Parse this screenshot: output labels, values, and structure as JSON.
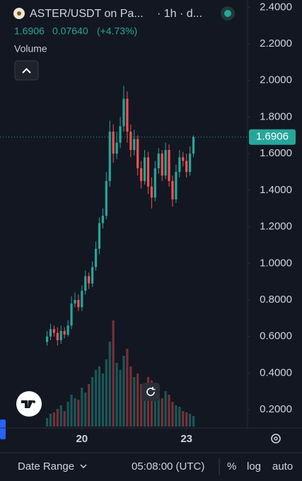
{
  "chart_data": {
    "type": "candlestick",
    "title": "ASTER/USDT on Pa...",
    "interval": "· 1h · d...",
    "change": "0.07640",
    "change_pct": "(+4.73%)",
    "volume_label": "Volume",
    "up_color": "#26a69a",
    "down_color": "#ef5350",
    "x": [
      19.0,
      19.1,
      19.2,
      19.3,
      19.4,
      19.5,
      19.6,
      19.7,
      19.8,
      19.9,
      20.0,
      20.1,
      20.2,
      20.3,
      20.4,
      20.5,
      20.6,
      20.7,
      20.8,
      20.9,
      21.0,
      21.1,
      21.2,
      21.3,
      21.4,
      21.5,
      21.6,
      21.7,
      21.8,
      21.9,
      22.0,
      22.1,
      22.2,
      22.3,
      22.4,
      22.5,
      22.6,
      22.7,
      22.8,
      22.9,
      23.0,
      23.1,
      23.2
    ],
    "open": [
      0.57,
      0.6,
      0.64,
      0.62,
      0.58,
      0.63,
      0.61,
      0.66,
      0.78,
      0.8,
      0.76,
      0.85,
      0.93,
      0.89,
      0.98,
      1.08,
      1.22,
      1.26,
      1.45,
      1.72,
      1.6,
      1.66,
      1.75,
      1.9,
      1.72,
      1.62,
      1.68,
      1.52,
      1.45,
      1.58,
      1.42,
      1.36,
      1.52,
      1.6,
      1.48,
      1.62,
      1.45,
      1.35,
      1.5,
      1.58,
      1.56,
      1.5,
      1.6
    ],
    "high": [
      0.63,
      0.67,
      0.66,
      0.65,
      0.66,
      0.65,
      0.69,
      0.82,
      0.84,
      0.83,
      0.88,
      0.96,
      0.95,
      1.01,
      1.12,
      1.25,
      1.3,
      1.5,
      1.78,
      1.76,
      1.72,
      1.8,
      1.97,
      1.94,
      1.76,
      1.73,
      1.7,
      1.56,
      1.62,
      1.61,
      1.47,
      1.56,
      1.63,
      1.62,
      1.66,
      1.65,
      1.48,
      1.54,
      1.62,
      1.61,
      1.6,
      1.64,
      1.7
    ],
    "low": [
      0.55,
      0.58,
      0.6,
      0.55,
      0.56,
      0.59,
      0.6,
      0.64,
      0.76,
      0.74,
      0.74,
      0.83,
      0.86,
      0.87,
      0.96,
      1.05,
      1.19,
      1.24,
      1.42,
      1.55,
      1.57,
      1.63,
      1.72,
      1.66,
      1.58,
      1.59,
      1.48,
      1.41,
      1.43,
      1.38,
      1.3,
      1.34,
      1.49,
      1.45,
      1.46,
      1.42,
      1.31,
      1.33,
      1.47,
      1.53,
      1.47,
      1.48,
      1.58
    ],
    "close": [
      0.6,
      0.64,
      0.62,
      0.58,
      0.63,
      0.61,
      0.66,
      0.78,
      0.8,
      0.76,
      0.85,
      0.93,
      0.89,
      0.98,
      1.08,
      1.22,
      1.26,
      1.45,
      1.72,
      1.6,
      1.66,
      1.75,
      1.9,
      1.72,
      1.62,
      1.68,
      1.52,
      1.45,
      1.58,
      1.42,
      1.36,
      1.52,
      1.6,
      1.48,
      1.62,
      1.45,
      1.35,
      1.5,
      1.58,
      1.56,
      1.5,
      1.6,
      1.6906
    ],
    "volume": [
      12,
      18,
      20,
      25,
      30,
      22,
      35,
      45,
      40,
      38,
      55,
      48,
      60,
      70,
      80,
      85,
      75,
      95,
      120,
      150,
      90,
      80,
      100,
      110,
      85,
      70,
      75,
      60,
      55,
      70,
      65,
      50,
      45,
      40,
      50,
      45,
      35,
      30,
      28,
      22,
      20,
      18,
      15
    ],
    "xlim": [
      17.65,
      24.65
    ],
    "xticks": [
      20,
      23
    ],
    "ylim": [
      0.1,
      2.44
    ],
    "yticks": [
      {
        "value": 0.2,
        "label": "0.2000"
      },
      {
        "value": 0.4,
        "label": "0.4000"
      },
      {
        "value": 0.6,
        "label": "0.6000"
      },
      {
        "value": 0.8,
        "label": "0.8000"
      },
      {
        "value": 1.0,
        "label": "1.0000"
      },
      {
        "value": 1.2,
        "label": "1.2000"
      },
      {
        "value": 1.4,
        "label": "1.4000"
      },
      {
        "value": 1.6,
        "label": "1.6000"
      },
      {
        "value": 1.8,
        "label": "1.8000"
      },
      {
        "value": 2.0,
        "label": "2.0000"
      },
      {
        "value": 2.2,
        "label": "2.2000"
      },
      {
        "value": 2.4,
        "label": "2.4000"
      }
    ]
  },
  "toolbar": {
    "date_range": "Date Range",
    "time": "05:08:00 (UTC)",
    "percent": "%",
    "log": "log",
    "auto": "auto"
  }
}
